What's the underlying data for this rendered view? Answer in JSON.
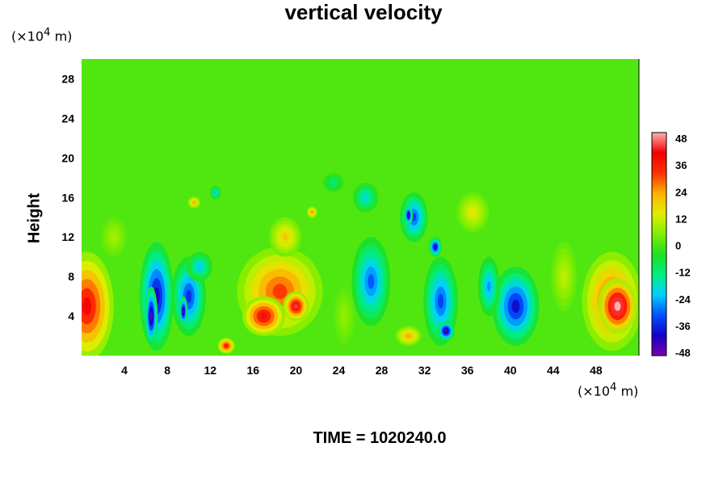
{
  "chart_data": {
    "type": "heatmap",
    "title": "vertical velocity",
    "ylabel": "Height",
    "y_unit_prefix": "(×10",
    "y_unit_exp": "4",
    "y_unit_suffix": " m)",
    "x_unit_prefix": "(×10",
    "x_unit_exp": "4",
    "x_unit_suffix": " m)",
    "footer": "TIME = 1020240.0",
    "xlim": [
      0,
      52
    ],
    "ylim": [
      0,
      30
    ],
    "x_ticks": [
      4,
      8,
      12,
      16,
      20,
      24,
      28,
      32,
      36,
      40,
      44,
      48
    ],
    "y_ticks": [
      4,
      8,
      12,
      16,
      20,
      24,
      28
    ],
    "colorbar": {
      "range": [
        -48,
        48
      ],
      "ticks": [
        48,
        36,
        24,
        12,
        0,
        -12,
        -24,
        -36,
        -48
      ],
      "stops": [
        "#7a00a8",
        "#1400c8",
        "#0050ff",
        "#00d0ff",
        "#00ee80",
        "#20e020",
        "#80ee00",
        "#e0ee00",
        "#ffb000",
        "#ff3000",
        "#f00000",
        "#ffb0b0"
      ]
    },
    "background_value": 0,
    "features": [
      {
        "x": 0.5,
        "y": 5,
        "rx": 2.5,
        "ry": 5.5,
        "value": 38
      },
      {
        "x": 7,
        "y": 6,
        "rx": 1.6,
        "ry": 5.5,
        "value": -40
      },
      {
        "x": 6.5,
        "y": 4,
        "rx": 0.6,
        "ry": 3,
        "value": -46
      },
      {
        "x": 10,
        "y": 6,
        "rx": 1.6,
        "ry": 4,
        "value": -34
      },
      {
        "x": 9.5,
        "y": 4.5,
        "rx": 0.4,
        "ry": 1.5,
        "value": -46
      },
      {
        "x": 11,
        "y": 9,
        "rx": 1.2,
        "ry": 1.5,
        "value": -22
      },
      {
        "x": 18.5,
        "y": 6.5,
        "rx": 4,
        "ry": 4.5,
        "value": 30
      },
      {
        "x": 19,
        "y": 12,
        "rx": 1.5,
        "ry": 2,
        "value": 18
      },
      {
        "x": 17,
        "y": 4,
        "rx": 2,
        "ry": 2,
        "value": 40
      },
      {
        "x": 20,
        "y": 5,
        "rx": 1.2,
        "ry": 1.5,
        "value": 42
      },
      {
        "x": 13.5,
        "y": 1,
        "rx": 0.8,
        "ry": 0.8,
        "value": 36
      },
      {
        "x": 27,
        "y": 7.5,
        "rx": 1.8,
        "ry": 4.5,
        "value": -30
      },
      {
        "x": 26.5,
        "y": 16,
        "rx": 1.2,
        "ry": 1.5,
        "value": -20
      },
      {
        "x": 31,
        "y": 14,
        "rx": 1.3,
        "ry": 2.5,
        "value": -32
      },
      {
        "x": 30.5,
        "y": 14.2,
        "rx": 0.4,
        "ry": 1,
        "value": -46
      },
      {
        "x": 33.5,
        "y": 5.5,
        "rx": 1.6,
        "ry": 4.5,
        "value": -32
      },
      {
        "x": 34,
        "y": 2.5,
        "rx": 0.8,
        "ry": 1,
        "value": -46
      },
      {
        "x": 33,
        "y": 11,
        "rx": 0.6,
        "ry": 1,
        "value": -42
      },
      {
        "x": 40.5,
        "y": 5,
        "rx": 2.2,
        "ry": 4,
        "value": -38
      },
      {
        "x": 38,
        "y": 7,
        "rx": 1,
        "ry": 3,
        "value": -26
      },
      {
        "x": 30.5,
        "y": 2,
        "rx": 1.2,
        "ry": 1,
        "value": 22
      },
      {
        "x": 36.5,
        "y": 14.5,
        "rx": 1.5,
        "ry": 2,
        "value": 14
      },
      {
        "x": 49.5,
        "y": 5.5,
        "rx": 2.8,
        "ry": 5,
        "value": 32
      },
      {
        "x": 50,
        "y": 5,
        "rx": 1.8,
        "ry": 2.8,
        "value": 50
      },
      {
        "x": 45,
        "y": 8,
        "rx": 1.2,
        "ry": 3.5,
        "value": 10
      },
      {
        "x": 24.5,
        "y": 4,
        "rx": 1,
        "ry": 3,
        "value": 6
      },
      {
        "x": 3,
        "y": 12,
        "rx": 1.2,
        "ry": 2,
        "value": 8
      },
      {
        "x": 10.5,
        "y": 15.5,
        "rx": 0.6,
        "ry": 0.6,
        "value": 22
      },
      {
        "x": 21.5,
        "y": 14.5,
        "rx": 0.5,
        "ry": 0.6,
        "value": 24
      },
      {
        "x": 12.5,
        "y": 16.5,
        "rx": 0.5,
        "ry": 0.7,
        "value": -22
      },
      {
        "x": 23.5,
        "y": 17.5,
        "rx": 1,
        "ry": 1,
        "value": -12
      }
    ]
  }
}
